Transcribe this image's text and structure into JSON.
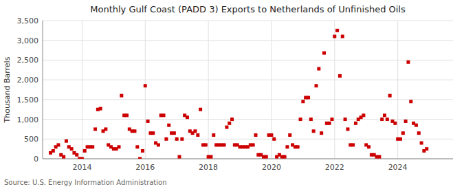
{
  "chart_data": {
    "type": "scatter",
    "title": "Monthly Gulf Coast (PADD 3) Exports to Netherlands of Unfinished Oils",
    "ylabel": "Thousand Barrels",
    "source": "Source: U.S. Energy Information Administration",
    "color": "#cc0000",
    "marker": "square",
    "grid": true,
    "xlim": [
      2012.75,
      2025.75
    ],
    "xticks": [
      2014,
      2016,
      2018,
      2020,
      2022,
      2024
    ],
    "ylim": [
      0,
      3500
    ],
    "yticks": [
      0,
      500,
      {
        "value": 1000,
        "label": "1,000"
      },
      {
        "value": 1500,
        "label": "1,500"
      },
      {
        "value": 2000,
        "label": "2,000"
      },
      {
        "value": 2500,
        "label": "2,500"
      },
      {
        "value": 3000,
        "label": "3,000"
      },
      {
        "value": 3500,
        "label": "3,500"
      }
    ],
    "x": [
      2013.0,
      2013.083,
      2013.167,
      2013.25,
      2013.333,
      2013.417,
      2013.5,
      2013.583,
      2013.667,
      2013.75,
      2013.833,
      2013.917,
      2014.0,
      2014.083,
      2014.167,
      2014.25,
      2014.333,
      2014.417,
      2014.5,
      2014.583,
      2014.667,
      2014.75,
      2014.833,
      2014.917,
      2015.0,
      2015.083,
      2015.167,
      2015.25,
      2015.333,
      2015.417,
      2015.5,
      2015.583,
      2015.667,
      2015.75,
      2015.833,
      2015.917,
      2016.0,
      2016.083,
      2016.167,
      2016.25,
      2016.333,
      2016.417,
      2016.5,
      2016.583,
      2016.667,
      2016.75,
      2016.833,
      2016.917,
      2017.0,
      2017.083,
      2017.167,
      2017.25,
      2017.333,
      2017.417,
      2017.5,
      2017.583,
      2017.667,
      2017.75,
      2017.833,
      2017.917,
      2018.0,
      2018.083,
      2018.167,
      2018.25,
      2018.333,
      2018.417,
      2018.5,
      2018.583,
      2018.667,
      2018.75,
      2018.833,
      2018.917,
      2019.0,
      2019.083,
      2019.167,
      2019.25,
      2019.333,
      2019.417,
      2019.5,
      2019.583,
      2019.667,
      2019.75,
      2019.833,
      2019.917,
      2020.0,
      2020.083,
      2020.167,
      2020.25,
      2020.333,
      2020.417,
      2020.5,
      2020.583,
      2020.667,
      2020.75,
      2020.833,
      2020.917,
      2021.0,
      2021.083,
      2021.167,
      2021.25,
      2021.333,
      2021.417,
      2021.5,
      2021.583,
      2021.667,
      2021.75,
      2021.833,
      2021.917,
      2022.0,
      2022.083,
      2022.167,
      2022.25,
      2022.333,
      2022.417,
      2022.5,
      2022.583,
      2022.667,
      2022.75,
      2022.833,
      2022.917,
      2023.0,
      2023.083,
      2023.167,
      2023.25,
      2023.333,
      2023.417,
      2023.5,
      2023.583,
      2023.667,
      2023.75,
      2023.833,
      2023.917,
      2024.0,
      2024.083,
      2024.167,
      2024.25,
      2024.333,
      2024.417,
      2024.5,
      2024.583,
      2024.667,
      2024.75,
      2024.833,
      2024.917
    ],
    "values": [
      150,
      200,
      300,
      350,
      100,
      50,
      450,
      300,
      250,
      150,
      100,
      0,
      0,
      200,
      300,
      300,
      300,
      750,
      1250,
      1270,
      700,
      750,
      350,
      300,
      250,
      250,
      300,
      1600,
      1100,
      1100,
      750,
      700,
      700,
      300,
      0,
      200,
      1850,
      950,
      650,
      650,
      400,
      350,
      1100,
      1100,
      500,
      850,
      650,
      650,
      500,
      50,
      500,
      1100,
      1050,
      700,
      650,
      700,
      600,
      1250,
      350,
      350,
      50,
      50,
      600,
      350,
      350,
      350,
      350,
      800,
      900,
      1000,
      350,
      350,
      300,
      300,
      300,
      300,
      350,
      350,
      600,
      100,
      100,
      50,
      50,
      600,
      600,
      500,
      50,
      100,
      50,
      50,
      300,
      600,
      350,
      300,
      300,
      1000,
      1450,
      1550,
      1550,
      1000,
      700,
      1850,
      2280,
      650,
      2680,
      900,
      900,
      1000,
      3100,
      3250,
      2100,
      3100,
      1000,
      750,
      350,
      350,
      900,
      1000,
      1050,
      1100,
      350,
      300,
      100,
      100,
      50,
      50,
      1000,
      1100,
      1000,
      1600,
      950,
      900,
      500,
      500,
      650,
      950,
      2450,
      1450,
      900,
      850,
      650,
      400,
      200,
      250
    ]
  }
}
